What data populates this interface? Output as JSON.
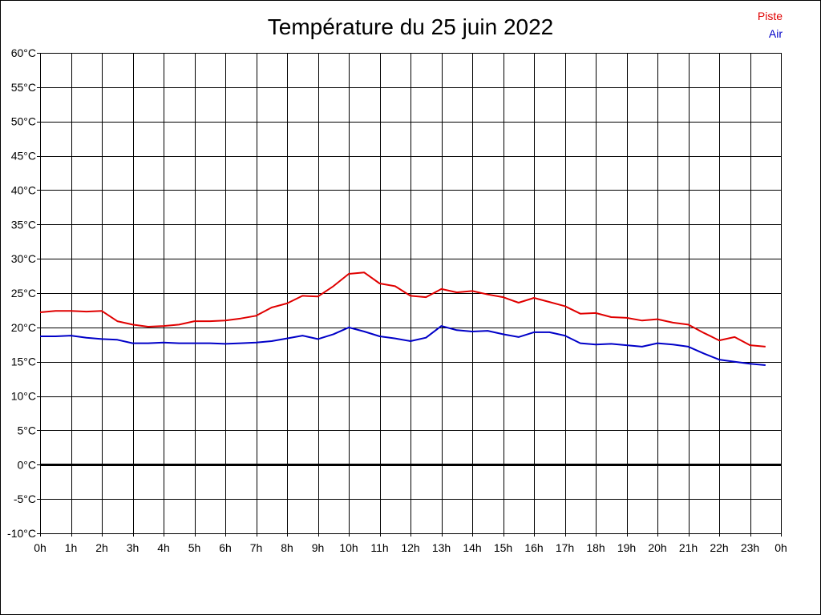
{
  "chart_data": {
    "type": "line",
    "title": "Température du 25 juin 2022",
    "xlabel": "",
    "ylabel": "",
    "x_ticks": [
      "0h",
      "1h",
      "2h",
      "3h",
      "4h",
      "5h",
      "6h",
      "7h",
      "8h",
      "9h",
      "10h",
      "11h",
      "12h",
      "13h",
      "14h",
      "15h",
      "16h",
      "17h",
      "18h",
      "19h",
      "20h",
      "21h",
      "22h",
      "23h",
      "0h"
    ],
    "y_ticks": [
      "60°C",
      "55°C",
      "50°C",
      "45°C",
      "40°C",
      "35°C",
      "30°C",
      "25°C",
      "20°C",
      "15°C",
      "10°C",
      "5°C",
      "0°C",
      "-5°C",
      "-10°C"
    ],
    "xlim": [
      0,
      24
    ],
    "ylim": [
      -10,
      60
    ],
    "grid": true,
    "legend_position": "top-right",
    "x": [
      0,
      0.5,
      1,
      1.5,
      2,
      2.5,
      3,
      3.5,
      4,
      4.5,
      5,
      5.5,
      6,
      6.5,
      7,
      7.5,
      8,
      8.5,
      9,
      9.5,
      10,
      10.5,
      11,
      11.5,
      12,
      12.5,
      13,
      13.5,
      14,
      14.5,
      15,
      15.5,
      16,
      16.5,
      17,
      17.5,
      18,
      18.5,
      19,
      19.5,
      20,
      20.5,
      21,
      21.5,
      22,
      22.5,
      23,
      23.5
    ],
    "series": [
      {
        "name": "Piste",
        "color": "#e00000",
        "values": [
          22.2,
          22.4,
          22.4,
          22.3,
          22.4,
          20.9,
          20.4,
          20.1,
          20.2,
          20.4,
          20.9,
          20.9,
          21.0,
          21.3,
          21.7,
          22.9,
          23.5,
          24.6,
          24.5,
          26.0,
          27.8,
          28.0,
          26.4,
          26.0,
          24.6,
          24.4,
          25.6,
          25.1,
          25.3,
          24.8,
          24.4,
          23.6,
          24.3,
          23.7,
          23.1,
          22.0,
          22.1,
          21.5,
          21.4,
          21.0,
          21.2,
          20.7,
          20.4,
          19.2,
          18.1,
          18.6,
          17.4,
          17.2
        ]
      },
      {
        "name": "Air",
        "color": "#0000c8",
        "values": [
          18.7,
          18.7,
          18.8,
          18.5,
          18.3,
          18.2,
          17.7,
          17.7,
          17.8,
          17.7,
          17.7,
          17.7,
          17.6,
          17.7,
          17.8,
          18.0,
          18.4,
          18.8,
          18.3,
          19.0,
          20.0,
          19.4,
          18.7,
          18.4,
          18.0,
          18.5,
          20.2,
          19.6,
          19.4,
          19.5,
          19.0,
          18.6,
          19.3,
          19.3,
          18.8,
          17.7,
          17.5,
          17.6,
          17.4,
          17.2,
          17.7,
          17.5,
          17.2,
          16.2,
          15.3,
          15.0,
          14.7,
          14.5
        ]
      }
    ]
  }
}
